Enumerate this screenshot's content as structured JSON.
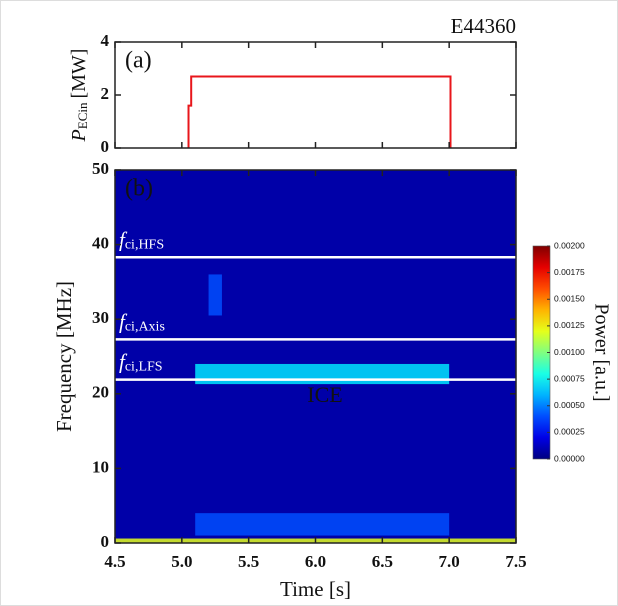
{
  "chart_data": [
    {
      "type": "line",
      "title": "E44360",
      "panel_label": "(a)",
      "ylabel": {
        "main": "P",
        "sub": "ECin",
        "unit": "[MW]"
      },
      "x": [
        5.05,
        5.05,
        5.07,
        5.07,
        7.01,
        7.01
      ],
      "values": [
        0,
        1.6,
        1.6,
        2.7,
        2.7,
        0
      ],
      "color": "#e8161b",
      "xlim": [
        4.5,
        7.5
      ],
      "xticks": [
        4.5,
        5,
        5.5,
        6,
        6.5,
        7,
        7.5
      ],
      "ylim": [
        0,
        4
      ],
      "yticks": [
        0,
        2,
        4
      ]
    },
    {
      "type": "heatmap",
      "panel_label": "(b)",
      "xlabel": "Time [s]",
      "ylabel": "Frequency [MHz]",
      "xlim": [
        4.5,
        7.5
      ],
      "xticks": [
        4.5,
        {
          "value": 5,
          "label": "5.0"
        },
        5.5,
        {
          "value": 6,
          "label": "6.0"
        },
        6.5,
        {
          "value": 7,
          "label": "7.0"
        },
        7.5
      ],
      "ylim": [
        0,
        50
      ],
      "yticks": [
        0,
        10,
        20,
        30,
        40,
        50
      ],
      "colormap": "jet",
      "background_value": 8e-05,
      "regions": [
        {
          "x": [
            5.1,
            7.0
          ],
          "y": [
            21.3,
            24.0
          ],
          "value": 0.0007
        },
        {
          "x": [
            5.1,
            7.0
          ],
          "y": [
            1.0,
            4.0
          ],
          "value": 0.0004
        },
        {
          "x": [
            5.2,
            5.3
          ],
          "y": [
            30.5,
            36.0
          ],
          "value": 0.0004
        },
        {
          "x": [
            4.5,
            7.5
          ],
          "y": [
            0,
            0.6
          ],
          "value": 0.0012
        }
      ],
      "lines": [
        {
          "label": {
            "main": "f",
            "sub": "ci,HFS"
          },
          "value": 38.3,
          "color": "#ffffff"
        },
        {
          "label": {
            "main": "f",
            "sub": "ci,Axis"
          },
          "value": 27.3,
          "color": "#ffffff"
        },
        {
          "label": {
            "main": "f",
            "sub": "ci,LFS"
          },
          "value": 21.9,
          "color": "#ffffff"
        }
      ],
      "annotations": [
        "ICE"
      ],
      "colorbar": {
        "label": "Power [a.u.]",
        "lim": [
          0,
          0.002
        ],
        "ticks": [
          {
            "value": 0,
            "label": "0.00000"
          },
          {
            "value": 0.00025,
            "label": "0.00025"
          },
          {
            "value": 0.0005,
            "label": "0.00050"
          },
          {
            "value": 0.00075,
            "label": "0.00075"
          },
          {
            "value": 0.001,
            "label": "0.00100"
          },
          {
            "value": 0.00125,
            "label": "0.00125"
          },
          {
            "value": 0.0015,
            "label": "0.00150"
          },
          {
            "value": 0.00175,
            "label": "0.00175"
          },
          {
            "value": 0.002,
            "label": "0.00200"
          }
        ]
      }
    }
  ]
}
